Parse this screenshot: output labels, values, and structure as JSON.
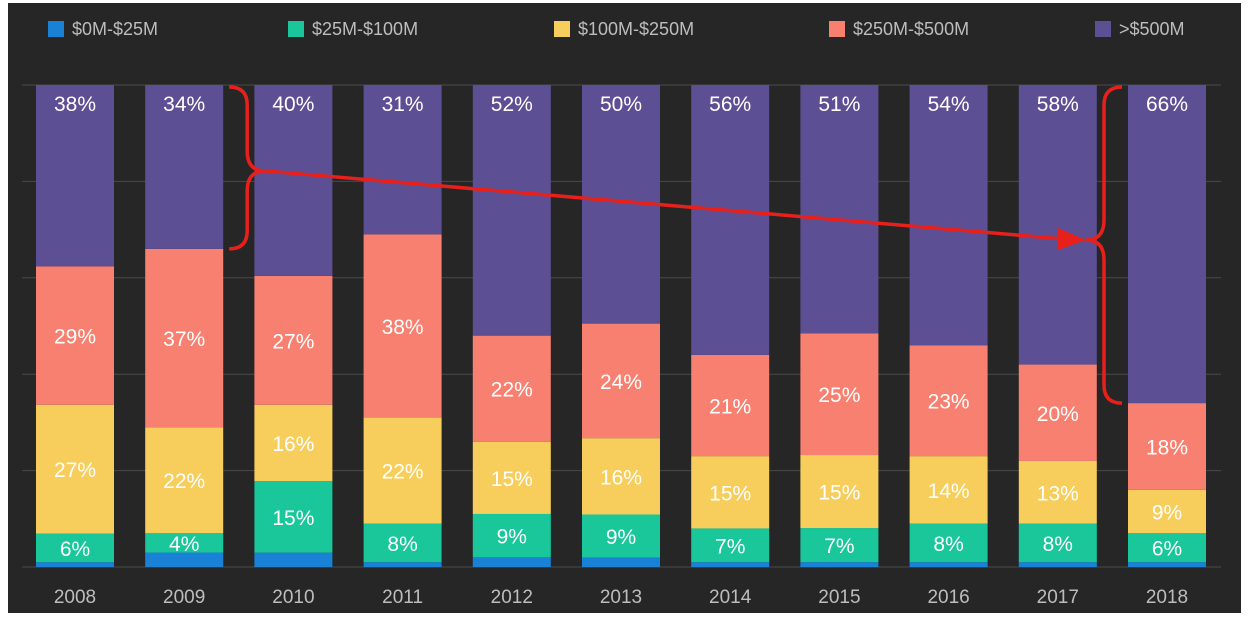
{
  "chart_data": {
    "type": "bar",
    "stacked": true,
    "normalized": true,
    "categories": [
      "2008",
      "2009",
      "2010",
      "2011",
      "2012",
      "2013",
      "2014",
      "2015",
      "2016",
      "2017",
      "2018"
    ],
    "series": [
      {
        "name": "$0M-$25M",
        "color": "#1a82d6",
        "values": [
          1,
          3,
          3,
          1,
          2,
          2,
          1,
          1,
          1,
          1,
          1
        ]
      },
      {
        "name": "$25M-$100M",
        "color": "#19c79a",
        "values": [
          6,
          4,
          15,
          8,
          9,
          9,
          7,
          7,
          8,
          8,
          6
        ]
      },
      {
        "name": "$100M-$250M",
        "color": "#f7ce5b",
        "values": [
          27,
          22,
          16,
          22,
          15,
          16,
          15,
          15,
          14,
          13,
          9
        ]
      },
      {
        "name": "$250M-$500M",
        "color": "#f88070",
        "values": [
          29,
          37,
          27,
          38,
          22,
          24,
          21,
          25,
          23,
          20,
          18
        ]
      },
      {
        "name": ">$500M",
        "color": "#5c4f93",
        "values": [
          38,
          34,
          40,
          31,
          52,
          50,
          56,
          51,
          54,
          58,
          66
        ]
      }
    ],
    "data_labels": [
      [
        "",
        "",
        "",
        "",
        "",
        "",
        "",
        "",
        "",
        "",
        ""
      ],
      [
        "6%",
        "4%",
        "15%",
        "8%",
        "9%",
        "9%",
        "7%",
        "7%",
        "8%",
        "8%",
        "6%"
      ],
      [
        "27%",
        "22%",
        "16%",
        "22%",
        "15%",
        "16%",
        "15%",
        "15%",
        "14%",
        "13%",
        "9%"
      ],
      [
        "29%",
        "37%",
        "27%",
        "38%",
        "22%",
        "24%",
        "21%",
        "25%",
        "23%",
        "20%",
        "18%"
      ],
      [
        "38%",
        "34%",
        "40%",
        "31%",
        "52%",
        "50%",
        "56%",
        "51%",
        "54%",
        "58%",
        "66%"
      ]
    ],
    "ylim": [
      0,
      100
    ],
    "grid": true,
    "legend_position": "top",
    "background_color": "#262626",
    "grid_color": "#4a4a4a",
    "tick_label_color": "#bdbdbd",
    "data_label_color": "#ffffff",
    "annotation": {
      "type": "trend-arrow-with-braces",
      "color": "#e8201c",
      "from_category": "2009",
      "to_category": "2018",
      "series": ">$500M"
    }
  }
}
